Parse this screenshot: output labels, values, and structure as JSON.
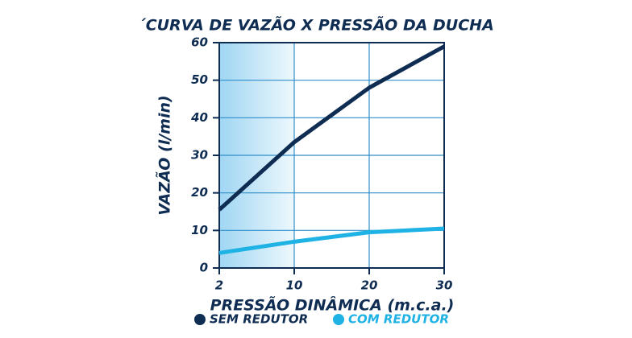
{
  "chart_data": {
    "type": "line",
    "title": "´CURVA DE VAZÃO X PRESSÃO DA DUCHA",
    "x_label": "PRESSÃO DINÂMICA (m.c.a.)",
    "y_label": "VAZÃO (l/min)",
    "categories": [
      "2",
      "10",
      "20",
      "30"
    ],
    "series": [
      {
        "name": "SEM REDUTOR",
        "color": "#0f2d52",
        "values": [
          15.5,
          33.5,
          48,
          59
        ]
      },
      {
        "name": "COM REDUTOR",
        "color": "#1fb2e4",
        "values": [
          4,
          7,
          9.5,
          10.5
        ]
      }
    ],
    "ylim": [
      0,
      60
    ],
    "yticks": [
      0,
      10,
      20,
      30,
      40,
      50,
      60
    ],
    "grid": true
  }
}
